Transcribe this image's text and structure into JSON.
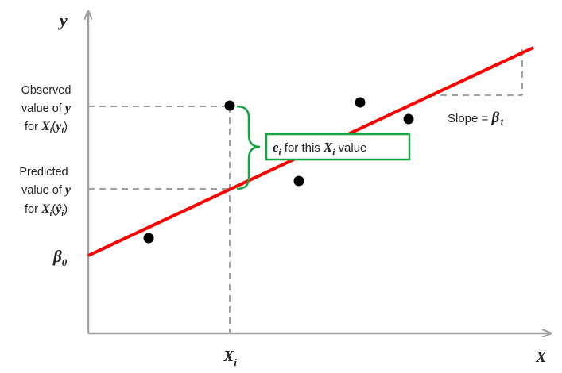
{
  "axes": {
    "y_label": "y",
    "x_label": "X",
    "xi_tick": {
      "main": "X",
      "sub": "i"
    },
    "intercept_tick": {
      "main": "β",
      "sub": "0"
    }
  },
  "observed_label": {
    "line1": "Observed",
    "line2_text": "value of ",
    "line2_var": "y",
    "line3_text": "for ",
    "line3_x": "X",
    "line3_sub": "i",
    "line3_paren_var": "y",
    "line3_paren_sub": "i"
  },
  "predicted_label": {
    "line1": "Predicted",
    "line2_text": "value of ",
    "line2_var": "y",
    "line3_text": "for ",
    "line3_x": "X",
    "line3_sub": "i",
    "line3_paren_var": "ŷ",
    "line3_paren_sub": "i"
  },
  "residual_box": {
    "var": "e",
    "var_sub": "i",
    "text1": " for this ",
    "x": "X",
    "x_sub": "i",
    "text2": " value"
  },
  "slope_label": {
    "text": "Slope = ",
    "var": "β",
    "sub": "1"
  },
  "colors": {
    "regression_line": "#ff0000",
    "residual_brace": "#1aa345",
    "guides": "#a0a0a0",
    "axes": "#a0a0a0",
    "points": "#000000"
  }
}
